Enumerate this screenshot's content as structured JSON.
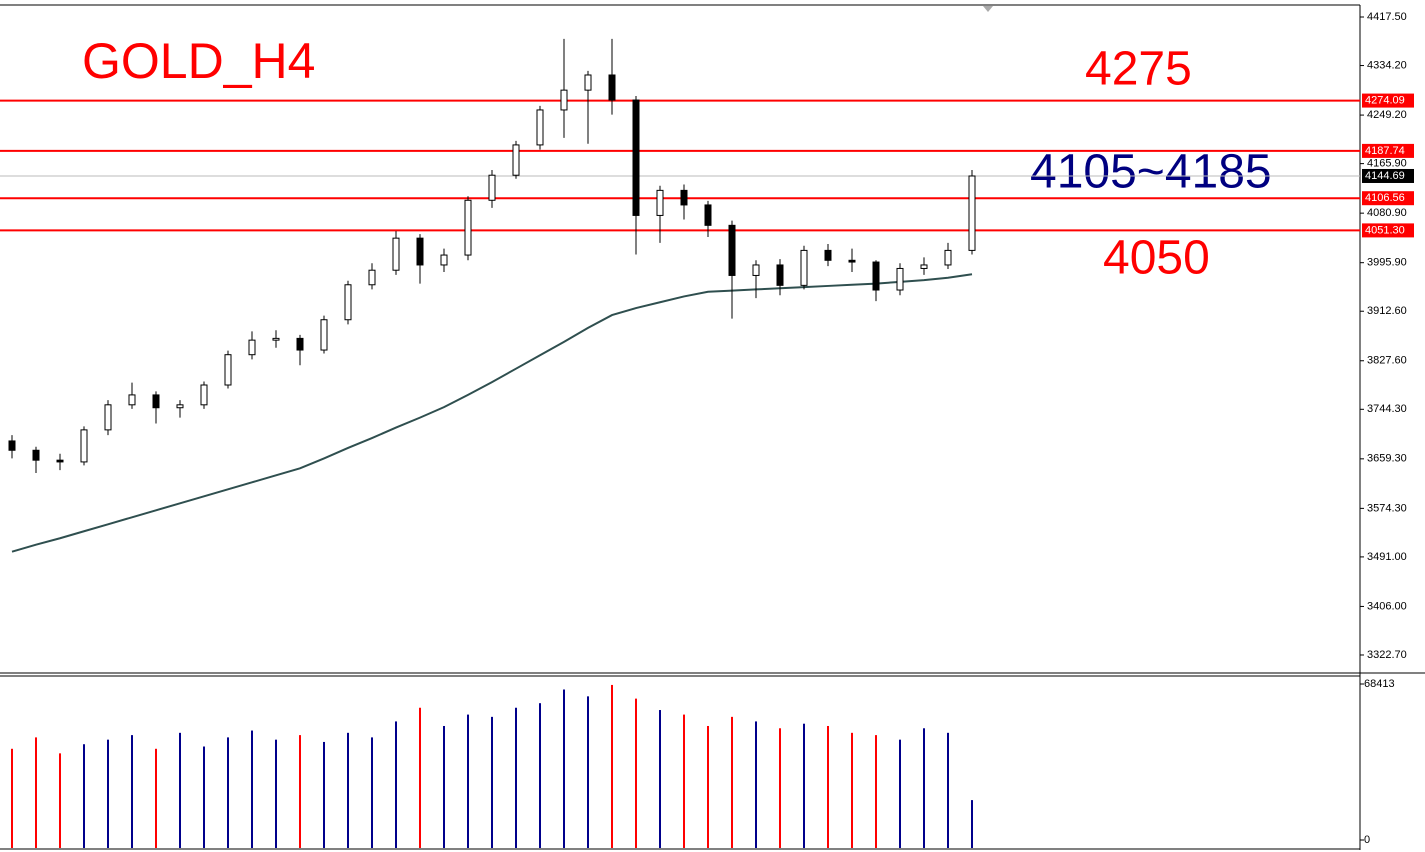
{
  "chart_data": [
    {
      "type": "candlestick",
      "title": "GOLD_H4",
      "open": [
        3690,
        3674,
        3657,
        3654,
        3709,
        3752,
        3769,
        3747,
        3752,
        3786,
        3838,
        3863,
        3866,
        3846,
        3898,
        3958,
        3983,
        4038,
        3992,
        4009,
        4103,
        4146,
        4198,
        4258,
        4292,
        4318,
        4275,
        4077,
        4120,
        4095,
        4060,
        3974,
        3992,
        3957,
        4017,
        4000,
        3997,
        3949,
        3986,
        3992,
        4017
      ],
      "high": [
        3700,
        3680,
        3668,
        3715,
        3760,
        3790,
        3775,
        3760,
        3792,
        3845,
        3878,
        3880,
        3872,
        3905,
        3965,
        3995,
        4050,
        4045,
        4020,
        4110,
        4155,
        4205,
        4265,
        4380,
        4325,
        4380,
        4282,
        4128,
        4130,
        4102,
        4068,
        4000,
        4002,
        4025,
        4028,
        4020,
        4000,
        3995,
        4005,
        4030,
        4155
      ],
      "low": [
        3660,
        3635,
        3640,
        3648,
        3700,
        3745,
        3720,
        3730,
        3745,
        3780,
        3830,
        3850,
        3820,
        3840,
        3890,
        3950,
        3975,
        3960,
        3980,
        4000,
        4090,
        4140,
        4190,
        4210,
        4200,
        4250,
        4010,
        4030,
        4070,
        4040,
        3900,
        3935,
        3940,
        3950,
        3990,
        3980,
        3930,
        3940,
        3975,
        3985,
        4010
      ],
      "close": [
        3674,
        3657,
        3654,
        3709,
        3752,
        3769,
        3747,
        3752,
        3786,
        3838,
        3863,
        3866,
        3846,
        3898,
        3958,
        3983,
        4038,
        3992,
        4009,
        4103,
        4146,
        4198,
        4258,
        4292,
        4318,
        4275,
        4077,
        4120,
        4095,
        4060,
        3974,
        3992,
        3957,
        4017,
        4000,
        3997,
        3949,
        3986,
        3992,
        4017,
        4144.69
      ],
      "up_color": "#ffffff",
      "down_color": "#000000",
      "moving_average": {
        "color": "#2f4f4f",
        "values": [
          3500,
          3512,
          3523,
          3535,
          3547,
          3559,
          3571,
          3583,
          3595,
          3607,
          3619,
          3631,
          3643,
          3660,
          3678,
          3695,
          3713,
          3730,
          3748,
          3769,
          3791,
          3814,
          3837,
          3860,
          3884,
          3906,
          3918,
          3928,
          3938,
          3946,
          3948,
          3950,
          3952,
          3954,
          3956,
          3958,
          3960,
          3963,
          3966,
          3970,
          3976
        ]
      },
      "levels": [
        {
          "value": 4274.09,
          "color": "#ff0000"
        },
        {
          "value": 4187.74,
          "color": "#ff0000"
        },
        {
          "value": 4106.56,
          "color": "#ff0000"
        },
        {
          "value": {
            "value": 4051.3,
            "label": "4051.30"
          },
          "color": "#ff0000"
        }
      ],
      "current_price": {
        "value": 4144.69,
        "color": "#000000"
      },
      "annotations": [
        {
          "text": "4275",
          "color": "#ff0000"
        },
        {
          "text": "4105~4185",
          "color": "#000080"
        },
        {
          "text": "4050",
          "color": "#ff0000"
        }
      ],
      "ylim": [
        3293.5,
        4438.1
      ],
      "yticks": [
        {
          "value": 4417.5,
          "label": "4417.50"
        },
        {
          "value": 4334.2,
          "label": "4334.20"
        },
        {
          "value": 4249.2,
          "label": "4249.20"
        },
        {
          "value": 4165.9,
          "label": "4165.90"
        },
        {
          "value": 4080.9,
          "label": "4080.90"
        },
        {
          "value": 3995.9,
          "label": "3995.90"
        },
        {
          "value": 3912.6,
          "label": "3912.60"
        },
        {
          "value": 3827.6,
          "label": "3827.60"
        },
        {
          "value": 3744.3,
          "label": "3744.30"
        },
        {
          "value": 3659.3,
          "label": "3659.30"
        },
        {
          "value": 3574.3,
          "label": "3574.30"
        },
        {
          "value": 3491,
          "label": "3491.00"
        },
        {
          "value": 3406,
          "label": "3406.00"
        },
        {
          "value": 3322.7,
          "label": "3322.70"
        }
      ]
    },
    {
      "type": "bar",
      "values": [
        40000,
        45000,
        38000,
        42000,
        44000,
        46000,
        40000,
        47000,
        41000,
        45000,
        48000,
        44000,
        46000,
        43000,
        47000,
        45000,
        52000,
        58000,
        50000,
        55000,
        54000,
        58000,
        60000,
        66000,
        63000,
        68000,
        62000,
        57000,
        55000,
        50000,
        54000,
        52000,
        49000,
        51000,
        50000,
        47000,
        46000,
        44000,
        49000,
        47000,
        17500
      ],
      "up_color": "#00008b",
      "down_color": "#ff0000",
      "ylim": [
        0,
        68413
      ],
      "yticks": [
        0,
        68413
      ]
    }
  ]
}
